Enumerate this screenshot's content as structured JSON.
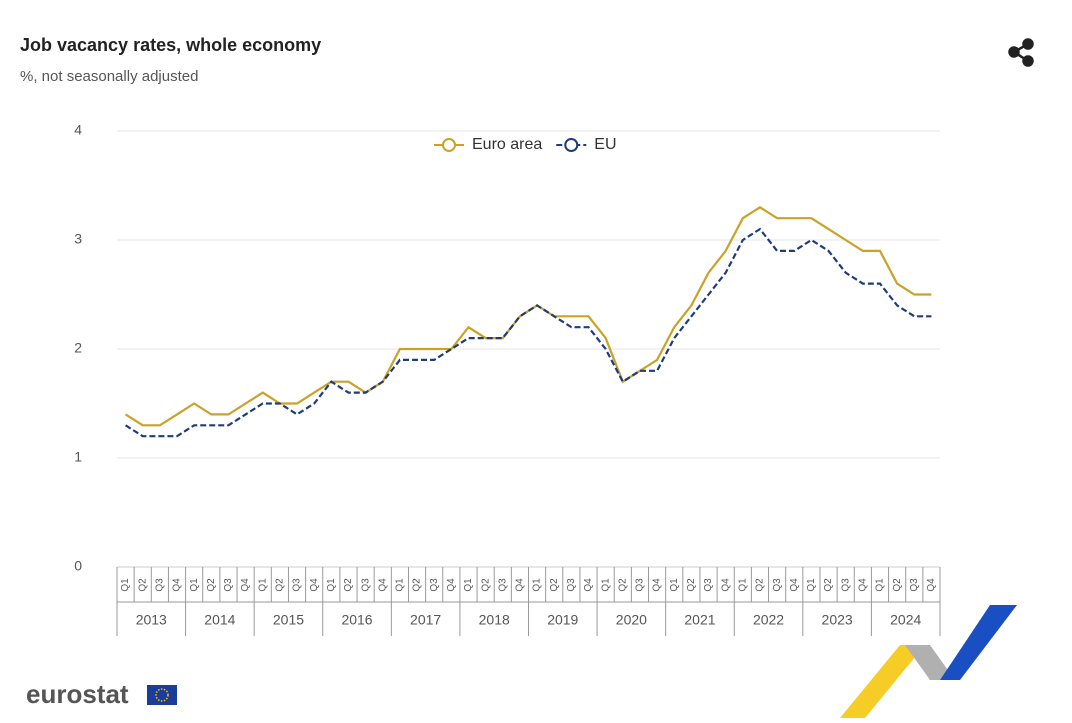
{
  "chart_data": {
    "type": "line",
    "title": "Job vacancy rates, whole economy",
    "subtitle": "%, not  seasonally adjusted",
    "categories": [
      "Q1",
      "Q2",
      "Q3",
      "Q4",
      "Q1",
      "Q2",
      "Q3",
      "Q4",
      "Q1",
      "Q2",
      "Q3",
      "Q4",
      "Q1",
      "Q2",
      "Q3",
      "Q4",
      "Q1",
      "Q2",
      "Q3",
      "Q4",
      "Q1",
      "Q2",
      "Q3",
      "Q4",
      "Q1",
      "Q2",
      "Q3",
      "Q4",
      "Q1",
      "Q2",
      "Q3",
      "Q4",
      "Q1",
      "Q2",
      "Q3",
      "Q4",
      "Q1",
      "Q2",
      "Q3",
      "Q4",
      "Q1",
      "Q2",
      "Q3",
      "Q4",
      "Q1",
      "Q2",
      "Q3",
      "Q4"
    ],
    "year_groups": [
      "2013",
      "2014",
      "2015",
      "2016",
      "2017",
      "2018",
      "2019",
      "2020",
      "2021",
      "2022",
      "2023",
      "2024"
    ],
    "series": [
      {
        "name": "Euro area",
        "color": "#c9a227",
        "dash": false,
        "values": [
          1.4,
          1.3,
          1.3,
          1.4,
          1.5,
          1.4,
          1.4,
          1.5,
          1.6,
          1.5,
          1.5,
          1.6,
          1.7,
          1.7,
          1.6,
          1.7,
          2.0,
          2.0,
          2.0,
          2.0,
          2.2,
          2.1,
          2.1,
          2.3,
          2.4,
          2.3,
          2.3,
          2.3,
          2.1,
          1.7,
          1.8,
          1.9,
          2.2,
          2.4,
          2.7,
          2.9,
          3.2,
          3.3,
          3.2,
          3.2,
          3.2,
          3.1,
          3.0,
          2.9,
          2.9,
          2.6,
          2.5,
          2.5
        ]
      },
      {
        "name": "EU",
        "color": "#1f3d7a",
        "dash": true,
        "values": [
          1.3,
          1.2,
          1.2,
          1.2,
          1.3,
          1.3,
          1.3,
          1.4,
          1.5,
          1.5,
          1.4,
          1.5,
          1.7,
          1.6,
          1.6,
          1.7,
          1.9,
          1.9,
          1.9,
          2.0,
          2.1,
          2.1,
          2.1,
          2.3,
          2.4,
          2.3,
          2.2,
          2.2,
          2.0,
          1.7,
          1.8,
          1.8,
          2.1,
          2.3,
          2.5,
          2.7,
          3.0,
          3.1,
          2.9,
          2.9,
          3.0,
          2.9,
          2.7,
          2.6,
          2.6,
          2.4,
          2.3,
          2.3
        ]
      }
    ],
    "ylim": [
      0,
      4
    ],
    "yticks": [
      0,
      1,
      2,
      3,
      4
    ],
    "grid": true,
    "legend": "top",
    "logo": "eurostat"
  }
}
